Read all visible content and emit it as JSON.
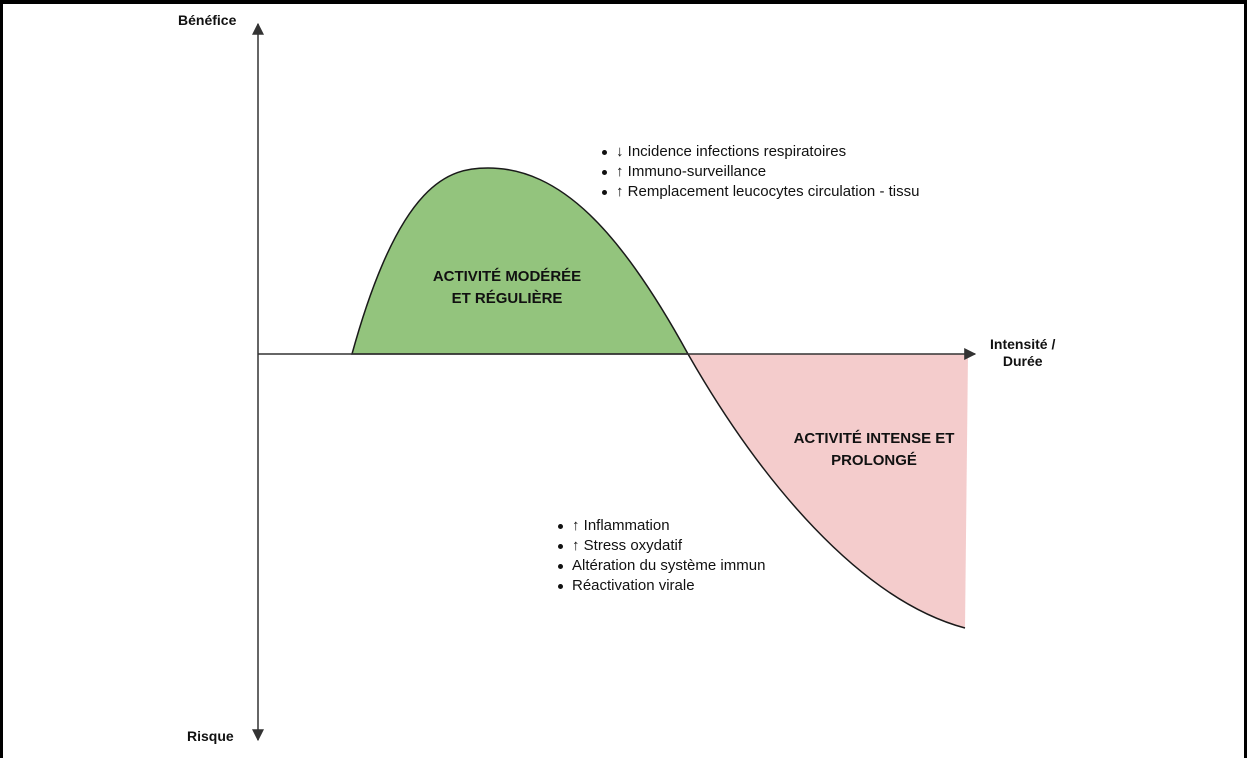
{
  "axes": {
    "y_top": "Bénéfice",
    "y_bottom": "Risque",
    "x_line1": "Intensité /",
    "x_line2": "Durée"
  },
  "regions": {
    "moderate": {
      "line1": "ACTIVITÉ MODÉRÉE",
      "line2": "ET RÉGULIÈRE",
      "color": "#93c47d"
    },
    "intense": {
      "line1": "ACTIVITÉ INTENSE ET",
      "line2": "PROLONGÉ",
      "color": "#f4cccc"
    }
  },
  "benefits": [
    "↓ Incidence infections respiratoires",
    "↑ Immuno-surveillance",
    "↑ Remplacement leucocytes circulation - tissu"
  ],
  "risks": [
    "↑ Inflammation",
    "↑ Stress oxydatif",
    "Altération du système immun",
    "Réactivation virale"
  ]
}
